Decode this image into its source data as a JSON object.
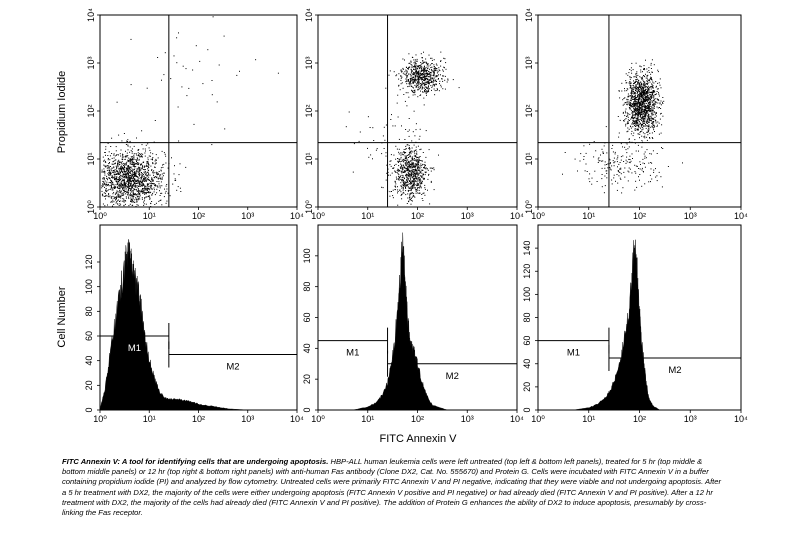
{
  "figure": {
    "y_label_top": "Propidium Iodide",
    "y_label_bottom": "Cell Number",
    "x_label": "FITC Annexin V"
  },
  "caption": {
    "lead": "FITC Annexin V: A tool for identifying cells that are undergoing apoptosis.",
    "body": "HBP-ALL human leukemia cells were left untreated (top left & bottom left panels), treated for 5 hr (top middle & bottom middle panels) or 12 hr (top right & bottom right panels) with anti-human Fas antibody (Clone DX2, Cat. No. 555670) and Protein G. Cells were incubated with FITC Annexin V in a buffer containing propidium iodide (PI) and analyzed by flow cytometry. Untreated cells were primarily FITC Annexin V and PI negative, indicating that they were viable and not undergoing apoptosis. After a 5 hr treatment with DX2, the majority of the cells were either undergoing apoptosis (FITC Annexin V positive and PI negative) or had already died (FITC Annexin V and PI positive). After a 12 hr treatment with DX2, the majority of the cells had already died (FITC Annexin V and PI positive). The addition of Protein G enhances the ability of DX2 to induce apoptosis, presumably by cross-linking the Fas receptor."
  },
  "chart_data": [
    {
      "type": "scatter",
      "panel": "top-left",
      "xscale": "log",
      "yscale": "log",
      "xlim": [
        1,
        10000
      ],
      "ylim": [
        1,
        10000
      ],
      "xticks": [
        "10⁰",
        "10¹",
        "10²",
        "10³",
        "10⁴"
      ],
      "yticks": [
        "10⁰",
        "10¹",
        "10²",
        "10³",
        "10⁴"
      ],
      "gate": {
        "x": 25,
        "y": 22
      },
      "clusters": [
        {
          "x": 4,
          "y": 4,
          "sx": 0.35,
          "sy": 0.3,
          "n": 1500
        },
        {
          "x": 60,
          "y": 400,
          "sx": 0.6,
          "sy": 0.5,
          "n": 40
        }
      ]
    },
    {
      "type": "scatter",
      "panel": "top-middle",
      "xscale": "log",
      "yscale": "log",
      "xlim": [
        1,
        10000
      ],
      "ylim": [
        1,
        10000
      ],
      "xticks": [
        "10⁰",
        "10¹",
        "10²",
        "10³",
        "10⁴"
      ],
      "yticks": [
        "10⁰",
        "10¹",
        "10²",
        "10³",
        "10⁴"
      ],
      "gate": {
        "x": 25,
        "y": 22
      },
      "clusters": [
        {
          "x": 70,
          "y": 5,
          "sx": 0.18,
          "sy": 0.28,
          "n": 700
        },
        {
          "x": 120,
          "y": 550,
          "sx": 0.2,
          "sy": 0.18,
          "n": 650
        },
        {
          "x": 30,
          "y": 30,
          "sx": 0.4,
          "sy": 0.4,
          "n": 60
        }
      ]
    },
    {
      "type": "scatter",
      "panel": "top-right",
      "xscale": "log",
      "yscale": "log",
      "xlim": [
        1,
        10000
      ],
      "ylim": [
        1,
        10000
      ],
      "xticks": [
        "10⁰",
        "10¹",
        "10²",
        "10³",
        "10⁴"
      ],
      "yticks": [
        "10⁰",
        "10¹",
        "10²",
        "10³",
        "10⁴"
      ],
      "gate": {
        "x": 25,
        "y": 22
      },
      "clusters": [
        {
          "x": 110,
          "y": 150,
          "sx": 0.16,
          "sy": 0.3,
          "n": 1300
        },
        {
          "x": 40,
          "y": 8,
          "sx": 0.4,
          "sy": 0.25,
          "n": 200
        }
      ]
    },
    {
      "type": "area",
      "panel": "bottom-left",
      "xscale": "log",
      "xlim": [
        1,
        10000
      ],
      "ylim": [
        0,
        150
      ],
      "xticks": [
        "10⁰",
        "10¹",
        "10²",
        "10³",
        "10⁴"
      ],
      "yticks": [
        "0",
        "20",
        "40",
        "60",
        "80",
        "100",
        "120"
      ],
      "x": [
        1,
        1.3,
        1.6,
        2,
        2.5,
        3,
        3.5,
        4,
        4.5,
        5,
        6,
        7,
        8,
        10,
        13,
        16,
        20,
        30,
        50,
        80,
        120,
        200,
        400,
        1000
      ],
      "values": [
        0,
        20,
        45,
        70,
        95,
        110,
        125,
        130,
        118,
        108,
        95,
        80,
        60,
        40,
        25,
        15,
        10,
        9,
        8,
        6,
        4,
        3,
        1,
        0
      ],
      "gates": [
        {
          "label": "M1",
          "from": 1,
          "to": 25,
          "y": 60
        },
        {
          "label": "M2",
          "from": 25,
          "to": 10000,
          "y": 45
        }
      ]
    },
    {
      "type": "area",
      "panel": "bottom-middle",
      "xscale": "log",
      "xlim": [
        1,
        10000
      ],
      "ylim": [
        0,
        120
      ],
      "xticks": [
        "10⁰",
        "10¹",
        "10²",
        "10³",
        "10⁴"
      ],
      "yticks": [
        "0",
        "20",
        "40",
        "60",
        "80",
        "100"
      ],
      "x": [
        5,
        10,
        15,
        20,
        25,
        30,
        35,
        40,
        45,
        50,
        55,
        60,
        65,
        70,
        80,
        90,
        100,
        120,
        150,
        200,
        400
      ],
      "values": [
        0,
        2,
        5,
        10,
        18,
        30,
        45,
        65,
        85,
        110,
        90,
        70,
        55,
        48,
        40,
        35,
        30,
        20,
        10,
        3,
        0
      ],
      "gates": [
        {
          "label": "M1",
          "from": 1,
          "to": 25,
          "y": 45
        },
        {
          "label": "M2",
          "from": 25,
          "to": 10000,
          "y": 30
        }
      ]
    },
    {
      "type": "area",
      "panel": "bottom-right",
      "xscale": "log",
      "xlim": [
        1,
        10000
      ],
      "ylim": [
        0,
        160
      ],
      "xticks": [
        "10⁰",
        "10¹",
        "10²",
        "10³",
        "10⁴"
      ],
      "yticks": [
        "0",
        "20",
        "40",
        "60",
        "80",
        "100",
        "120",
        "140"
      ],
      "x": [
        5,
        10,
        15,
        20,
        25,
        30,
        40,
        50,
        60,
        70,
        80,
        90,
        100,
        110,
        130,
        150,
        180,
        250
      ],
      "values": [
        0,
        2,
        5,
        10,
        15,
        22,
        40,
        60,
        80,
        110,
        145,
        120,
        90,
        60,
        30,
        12,
        4,
        0
      ],
      "gates": [
        {
          "label": "M1",
          "from": 1,
          "to": 25,
          "y": 60
        },
        {
          "label": "M2",
          "from": 25,
          "to": 10000,
          "y": 45
        }
      ]
    }
  ]
}
